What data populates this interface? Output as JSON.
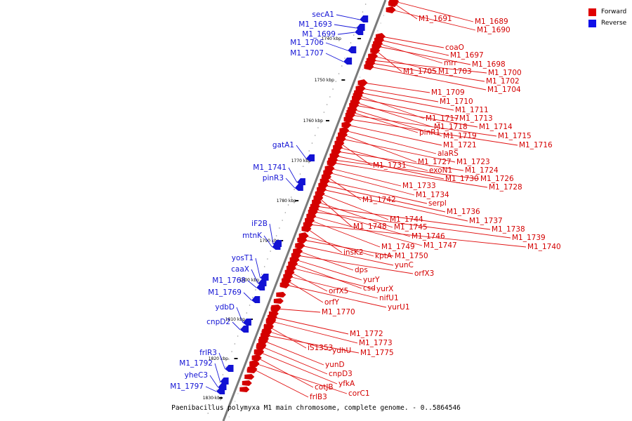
{
  "caption": "Paenibacillus polymyxa M1 main chromosome, complete genome. - 0..5864546",
  "legend": {
    "forward_label": "Forward",
    "reverse_label": "Reverse",
    "forward_color": "#d40000",
    "reverse_color": "#1212d4"
  },
  "ticks": [
    "1740 kbp",
    "1750 kbp",
    "1760 kbp",
    "1770 kbp",
    "1780 kbp",
    "1790 kbp",
    "1800 kbp",
    "1810 kbp",
    "1820 kbp",
    "1830 kbp"
  ],
  "forward_genes": [
    "M1_1691",
    "M1_1689",
    "M1_1690",
    "coaO",
    "M1_1697",
    "mrr",
    "M1_1698",
    "M1_1705",
    "M1_1703",
    "M1_1700",
    "M1_1702",
    "M1_1704",
    "M1_1709",
    "M1_1710",
    "M1_1711",
    "M1_1717",
    "M1_1713",
    "M1_1718",
    "M1_1714",
    "pinR1",
    "M1_1719",
    "M1_1715",
    "M1_1716",
    "M1_1721",
    "alaRS",
    "M1_1727",
    "M1_1723",
    "M1_1731",
    "exoN1",
    "M1_1724",
    "M1_1730",
    "M1_1726",
    "M1_1728",
    "M1_1733",
    "M1_1734",
    "M1_1742",
    "serpl",
    "M1_1736",
    "M1_1737",
    "M1_1744",
    "M1_1748",
    "M1_1745",
    "M1_1738",
    "M1_1746",
    "M1_1739",
    "M1_1747",
    "M1_1749",
    "M1_1740",
    "insK2",
    "kptA",
    "M1_1750",
    "yunC",
    "dps",
    "orfX3",
    "yurY",
    "csd",
    "yurX",
    "orfX5",
    "nifU1",
    "orfY",
    "yurU1",
    "M1_1770",
    "M1_1772",
    "M1_1773",
    "iS1353",
    "ydhU",
    "M1_1775",
    "yunD",
    "cnpD3",
    "yfkA",
    "cotJB",
    "corC1",
    "frlB3"
  ],
  "reverse_genes": [
    "secA1",
    "M1_1693",
    "M1_1699",
    "M1_1706",
    "M1_1707",
    "gatA1",
    "M1_1741",
    "pinR3",
    "iF2B",
    "mtnK",
    "yosT1",
    "caaX",
    "M1_1768",
    "M1_1769",
    "ydbD",
    "cnpD2",
    "frlR3",
    "M1_1792",
    "yheC3",
    "M1_1797"
  ]
}
